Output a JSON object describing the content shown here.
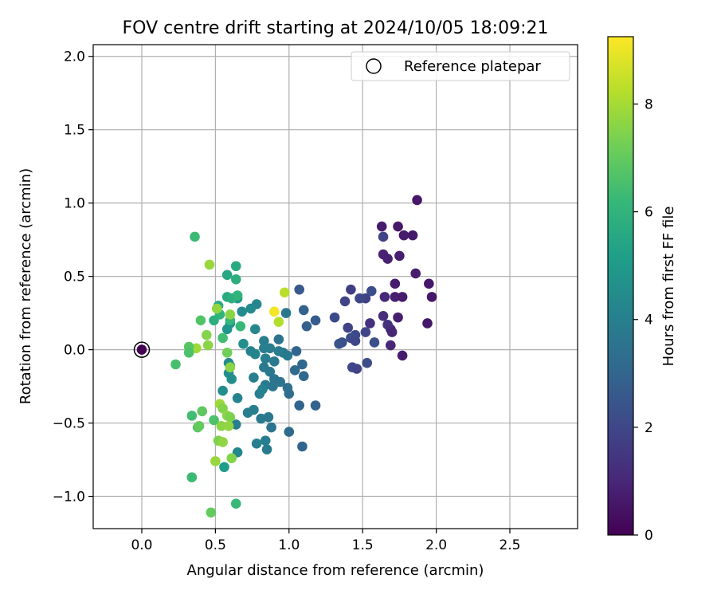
{
  "chart_data": {
    "type": "scatter",
    "title": "FOV centre drift starting at 2024/10/05 18:09:21",
    "xlabel": "Angular distance from reference (arcmin)",
    "ylabel": "Rotation from reference (arcmin)",
    "xlim": [
      -0.33,
      2.96
    ],
    "ylim": [
      -1.22,
      2.08
    ],
    "x_ticks": [
      "0.0",
      "0.5",
      "1.0",
      "1.5",
      "2.0",
      "2.5"
    ],
    "x_tick_values": [
      0.0,
      0.5,
      1.0,
      1.5,
      2.0,
      2.5
    ],
    "y_ticks": [
      "−1.0",
      "−0.5",
      "0.0",
      "0.5",
      "1.0",
      "1.5",
      "2.0"
    ],
    "y_tick_values": [
      -1.0,
      -0.5,
      0.0,
      0.5,
      1.0,
      1.5,
      2.0
    ],
    "grid": true,
    "legend": {
      "position": "upper right",
      "label": "Reference platepar"
    },
    "reference_point": {
      "x": 0.0,
      "y": 0.0
    },
    "colorbar": {
      "label": "Hours from first FF file",
      "min": 0,
      "max": 9.25,
      "ticks": [
        "0",
        "2",
        "4",
        "6",
        "8"
      ],
      "tick_values": [
        0,
        2,
        4,
        6,
        8
      ],
      "colormap": "viridis",
      "stops": [
        "#440154",
        "#482878",
        "#3e4989",
        "#31688e",
        "#26828e",
        "#1f9e89",
        "#35b779",
        "#6ece58",
        "#b5de2b",
        "#fde725"
      ]
    },
    "points": [
      {
        "x": 0.0,
        "y": 0.0,
        "h": 0.0
      },
      {
        "x": 1.87,
        "y": 1.02,
        "h": 0.55
      },
      {
        "x": 1.63,
        "y": 0.84,
        "h": 0.7
      },
      {
        "x": 1.74,
        "y": 0.84,
        "h": 0.6
      },
      {
        "x": 1.78,
        "y": 0.78,
        "h": 0.65
      },
      {
        "x": 1.84,
        "y": 0.78,
        "h": 0.6
      },
      {
        "x": 1.64,
        "y": 0.77,
        "h": 1.9
      },
      {
        "x": 1.64,
        "y": 0.65,
        "h": 0.9
      },
      {
        "x": 1.67,
        "y": 0.62,
        "h": 0.85
      },
      {
        "x": 1.75,
        "y": 0.64,
        "h": 0.8
      },
      {
        "x": 1.86,
        "y": 0.52,
        "h": 0.7
      },
      {
        "x": 1.95,
        "y": 0.45,
        "h": 0.6
      },
      {
        "x": 1.97,
        "y": 0.36,
        "h": 0.55
      },
      {
        "x": 1.72,
        "y": 0.45,
        "h": 0.7
      },
      {
        "x": 1.65,
        "y": 0.36,
        "h": 1.1
      },
      {
        "x": 1.72,
        "y": 0.36,
        "h": 0.85
      },
      {
        "x": 1.77,
        "y": 0.36,
        "h": 0.75
      },
      {
        "x": 1.64,
        "y": 0.23,
        "h": 1.2
      },
      {
        "x": 1.74,
        "y": 0.22,
        "h": 0.8
      },
      {
        "x": 1.67,
        "y": 0.17,
        "h": 1.4
      },
      {
        "x": 1.69,
        "y": 0.14,
        "h": 1.2
      },
      {
        "x": 1.7,
        "y": 0.12,
        "h": 0.95
      },
      {
        "x": 1.94,
        "y": 0.18,
        "h": 0.6
      },
      {
        "x": 1.69,
        "y": 0.03,
        "h": 1.0
      },
      {
        "x": 1.77,
        "y": -0.04,
        "h": 0.7
      },
      {
        "x": 1.55,
        "y": 0.18,
        "h": 1.3
      },
      {
        "x": 1.52,
        "y": 0.35,
        "h": 1.8
      },
      {
        "x": 1.48,
        "y": 0.35,
        "h": 2.0
      },
      {
        "x": 1.56,
        "y": 0.4,
        "h": 2.2
      },
      {
        "x": 1.42,
        "y": 0.41,
        "h": 1.7
      },
      {
        "x": 1.38,
        "y": 0.33,
        "h": 1.9
      },
      {
        "x": 1.31,
        "y": 0.22,
        "h": 2.1
      },
      {
        "x": 1.4,
        "y": 0.15,
        "h": 1.9
      },
      {
        "x": 1.45,
        "y": 0.1,
        "h": 2.1
      },
      {
        "x": 1.52,
        "y": 0.12,
        "h": 2.0
      },
      {
        "x": 1.42,
        "y": 0.08,
        "h": 2.2
      },
      {
        "x": 1.45,
        "y": 0.06,
        "h": 2.0
      },
      {
        "x": 1.36,
        "y": 0.05,
        "h": 2.3
      },
      {
        "x": 1.34,
        "y": 0.04,
        "h": 2.4
      },
      {
        "x": 1.58,
        "y": 0.05,
        "h": 2.3
      },
      {
        "x": 1.43,
        "y": -0.12,
        "h": 2.0
      },
      {
        "x": 1.46,
        "y": -0.13,
        "h": 1.9
      },
      {
        "x": 1.53,
        "y": -0.09,
        "h": 2.2
      },
      {
        "x": 1.18,
        "y": 0.2,
        "h": 2.7
      },
      {
        "x": 1.12,
        "y": 0.16,
        "h": 2.8
      },
      {
        "x": 1.1,
        "y": 0.27,
        "h": 2.9
      },
      {
        "x": 1.07,
        "y": 0.41,
        "h": 2.6
      },
      {
        "x": 1.05,
        "y": -0.01,
        "h": 3.0
      },
      {
        "x": 1.09,
        "y": -0.1,
        "h": 3.1
      },
      {
        "x": 1.04,
        "y": -0.14,
        "h": 3.2
      },
      {
        "x": 1.1,
        "y": -0.18,
        "h": 3.1
      },
      {
        "x": 1.18,
        "y": -0.38,
        "h": 2.9
      },
      {
        "x": 1.07,
        "y": -0.38,
        "h": 3.0
      },
      {
        "x": 1.09,
        "y": -0.66,
        "h": 3.0
      },
      {
        "x": 1.0,
        "y": -0.56,
        "h": 3.2
      },
      {
        "x": 1.0,
        "y": -0.3,
        "h": 3.3
      },
      {
        "x": 0.99,
        "y": -0.26,
        "h": 3.4
      },
      {
        "x": 0.93,
        "y": 0.07,
        "h": 3.5
      },
      {
        "x": 0.96,
        "y": -0.02,
        "h": 3.6
      },
      {
        "x": 0.99,
        "y": -0.04,
        "h": 3.8
      },
      {
        "x": 0.93,
        "y": -0.01,
        "h": 3.9
      },
      {
        "x": 0.98,
        "y": 0.25,
        "h": 3.7
      },
      {
        "x": 0.9,
        "y": -0.08,
        "h": 3.8
      },
      {
        "x": 0.87,
        "y": 0.01,
        "h": 3.9
      },
      {
        "x": 0.83,
        "y": 0.06,
        "h": 3.9
      },
      {
        "x": 0.83,
        "y": 0.01,
        "h": 4.0
      },
      {
        "x": 0.84,
        "y": -0.06,
        "h": 3.9
      },
      {
        "x": 0.83,
        "y": -0.12,
        "h": 3.8
      },
      {
        "x": 0.87,
        "y": -0.15,
        "h": 3.7
      },
      {
        "x": 0.9,
        "y": -0.2,
        "h": 3.6
      },
      {
        "x": 0.94,
        "y": -0.22,
        "h": 3.5
      },
      {
        "x": 0.89,
        "y": -0.25,
        "h": 3.6
      },
      {
        "x": 0.84,
        "y": -0.24,
        "h": 3.8
      },
      {
        "x": 0.8,
        "y": -0.3,
        "h": 3.9
      },
      {
        "x": 0.82,
        "y": -0.27,
        "h": 4.1
      },
      {
        "x": 0.76,
        "y": -0.19,
        "h": 4.0
      },
      {
        "x": 0.74,
        "y": -0.01,
        "h": 4.1
      },
      {
        "x": 0.77,
        "y": -0.03,
        "h": 4.2
      },
      {
        "x": 0.78,
        "y": 0.31,
        "h": 4.3
      },
      {
        "x": 0.74,
        "y": 0.28,
        "h": 4.4
      },
      {
        "x": 0.68,
        "y": 0.26,
        "h": 4.4
      },
      {
        "x": 0.77,
        "y": 0.14,
        "h": 4.3
      },
      {
        "x": 0.69,
        "y": 0.04,
        "h": 4.6
      },
      {
        "x": 0.81,
        "y": -0.47,
        "h": 3.8
      },
      {
        "x": 0.86,
        "y": -0.46,
        "h": 3.7
      },
      {
        "x": 0.88,
        "y": -0.53,
        "h": 3.6
      },
      {
        "x": 0.72,
        "y": -0.43,
        "h": 3.9
      },
      {
        "x": 0.76,
        "y": -0.41,
        "h": 4.0
      },
      {
        "x": 0.78,
        "y": -0.64,
        "h": 4.0
      },
      {
        "x": 0.84,
        "y": -0.62,
        "h": 3.9
      },
      {
        "x": 0.85,
        "y": -0.68,
        "h": 3.8
      },
      {
        "x": 0.65,
        "y": -0.33,
        "h": 4.1
      },
      {
        "x": 0.64,
        "y": -0.51,
        "h": 4.0
      },
      {
        "x": 0.65,
        "y": -0.7,
        "h": 4.3
      },
      {
        "x": 0.59,
        "y": -0.09,
        "h": 4.4
      },
      {
        "x": 0.6,
        "y": -0.11,
        "h": 4.5
      },
      {
        "x": 0.59,
        "y": -0.16,
        "h": 4.6
      },
      {
        "x": 0.61,
        "y": -0.2,
        "h": 4.5
      },
      {
        "x": 0.55,
        "y": -0.28,
        "h": 4.6
      },
      {
        "x": 0.6,
        "y": 0.18,
        "h": 4.7
      },
      {
        "x": 0.58,
        "y": 0.14,
        "h": 4.8
      },
      {
        "x": 0.65,
        "y": 0.35,
        "h": 5.0
      },
      {
        "x": 0.56,
        "y": -0.8,
        "h": 5.1
      },
      {
        "x": 0.64,
        "y": 0.57,
        "h": 5.6
      },
      {
        "x": 0.58,
        "y": 0.51,
        "h": 5.5
      },
      {
        "x": 0.64,
        "y": 0.48,
        "h": 5.8
      },
      {
        "x": 0.58,
        "y": 0.36,
        "h": 5.6
      },
      {
        "x": 0.61,
        "y": 0.35,
        "h": 5.8
      },
      {
        "x": 0.65,
        "y": 0.37,
        "h": 6.0
      },
      {
        "x": 0.67,
        "y": 0.16,
        "h": 6.2
      },
      {
        "x": 0.55,
        "y": 0.08,
        "h": 6.4
      },
      {
        "x": 0.6,
        "y": 0.2,
        "h": 6.1
      },
      {
        "x": 0.52,
        "y": 0.3,
        "h": 5.6
      },
      {
        "x": 0.49,
        "y": 0.2,
        "h": 5.8
      },
      {
        "x": 0.53,
        "y": 0.24,
        "h": 6.0
      },
      {
        "x": 0.36,
        "y": 0.77,
        "h": 6.3
      },
      {
        "x": 0.4,
        "y": 0.2,
        "h": 6.7
      },
      {
        "x": 0.46,
        "y": 0.58,
        "h": 7.8
      },
      {
        "x": 0.51,
        "y": 0.28,
        "h": 7.7
      },
      {
        "x": 0.6,
        "y": 0.24,
        "h": 7.6
      },
      {
        "x": 0.44,
        "y": 0.1,
        "h": 7.5
      },
      {
        "x": 0.45,
        "y": 0.03,
        "h": 7.6
      },
      {
        "x": 0.37,
        "y": 0.01,
        "h": 7.9
      },
      {
        "x": 0.32,
        "y": 0.02,
        "h": 6.8
      },
      {
        "x": 0.32,
        "y": -0.02,
        "h": 6.6
      },
      {
        "x": 0.23,
        "y": -0.1,
        "h": 6.5
      },
      {
        "x": 0.58,
        "y": -0.02,
        "h": 7.2
      },
      {
        "x": 0.6,
        "y": -0.12,
        "h": 7.6
      },
      {
        "x": 0.34,
        "y": -0.45,
        "h": 6.4
      },
      {
        "x": 0.41,
        "y": -0.42,
        "h": 6.9
      },
      {
        "x": 0.38,
        "y": -0.53,
        "h": 6.8
      },
      {
        "x": 0.39,
        "y": -0.52,
        "h": 7.0
      },
      {
        "x": 0.49,
        "y": -0.48,
        "h": 6.6
      },
      {
        "x": 0.53,
        "y": -0.37,
        "h": 7.9
      },
      {
        "x": 0.55,
        "y": -0.4,
        "h": 7.5
      },
      {
        "x": 0.58,
        "y": -0.45,
        "h": 7.6
      },
      {
        "x": 0.6,
        "y": -0.46,
        "h": 7.4
      },
      {
        "x": 0.54,
        "y": -0.52,
        "h": 7.6
      },
      {
        "x": 0.59,
        "y": -0.52,
        "h": 7.7
      },
      {
        "x": 0.52,
        "y": -0.62,
        "h": 7.4
      },
      {
        "x": 0.55,
        "y": -0.63,
        "h": 7.7
      },
      {
        "x": 0.5,
        "y": -0.76,
        "h": 7.8
      },
      {
        "x": 0.61,
        "y": -0.74,
        "h": 7.5
      },
      {
        "x": 0.34,
        "y": -0.87,
        "h": 6.3
      },
      {
        "x": 0.47,
        "y": -1.11,
        "h": 7.0
      },
      {
        "x": 0.64,
        "y": -1.05,
        "h": 6.2
      },
      {
        "x": 0.97,
        "y": 0.39,
        "h": 8.3
      },
      {
        "x": 0.9,
        "y": 0.26,
        "h": 9.1
      },
      {
        "x": 0.93,
        "y": 0.19,
        "h": 8.2
      }
    ]
  }
}
